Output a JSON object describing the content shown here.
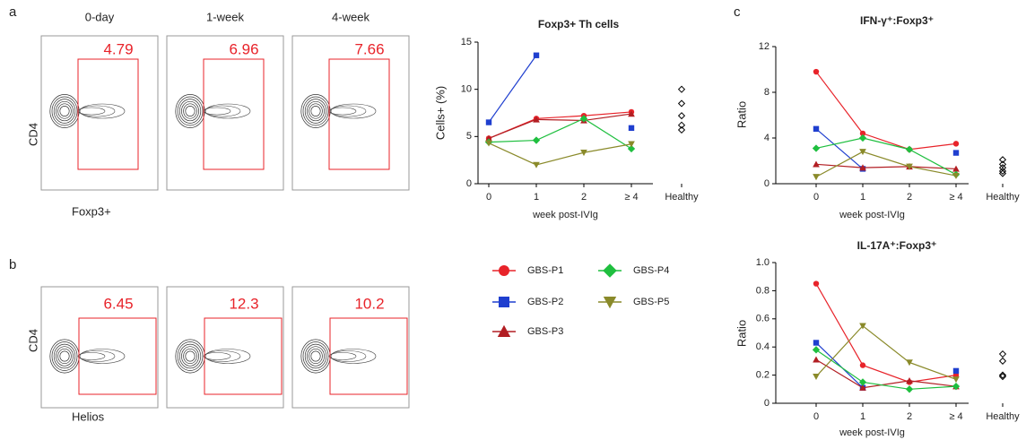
{
  "figure": {
    "panel_letters": [
      "a",
      "b",
      "c"
    ],
    "flow": {
      "columns": [
        "0-day",
        "1-week",
        "4-week"
      ],
      "rows": [
        {
          "y_label": "CD4",
          "x_label": "Foxp3+",
          "gates": [
            "4.79",
            "6.96",
            "7.66"
          ]
        },
        {
          "y_label": "CD4",
          "x_label": "Helios",
          "gates": [
            "6.45",
            "12.3",
            "10.2"
          ]
        }
      ]
    }
  },
  "chart_data": [
    {
      "type": "line",
      "title": "Foxp3+ Th cells",
      "y_label": "Cells+ (%)",
      "x_label": "week post-IVIg",
      "categories": [
        "0",
        "1",
        "2",
        "≥ 4",
        "Healthy"
      ],
      "ylim": [
        0,
        15
      ],
      "yticks": [
        0,
        5,
        10,
        15
      ],
      "series": [
        {
          "name": "GBS-P1",
          "color": "#e8232a",
          "marker": "circle",
          "values": [
            4.8,
            6.9,
            7.2,
            7.6,
            null
          ]
        },
        {
          "name": "GBS-P2",
          "color": "#1f3fcf",
          "marker": "square",
          "values": [
            6.5,
            13.6,
            null,
            5.9,
            null
          ]
        },
        {
          "name": "GBS-P3",
          "color": "#b21e23",
          "marker": "triangle",
          "values": [
            4.8,
            6.8,
            6.7,
            7.4,
            null
          ]
        },
        {
          "name": "GBS-P4",
          "color": "#1fbf3f",
          "marker": "diamond",
          "values": [
            4.4,
            4.6,
            6.9,
            3.7,
            null
          ]
        },
        {
          "name": "GBS-P5",
          "color": "#8a8a2a",
          "marker": "triangle-down",
          "values": [
            4.3,
            2.0,
            3.3,
            4.2,
            null
          ]
        }
      ],
      "healthy_values": [
        10.0,
        8.5,
        7.2,
        6.2,
        5.7
      ]
    },
    {
      "type": "line",
      "title": "IFN-γ⁺:Foxp3⁺",
      "y_label": "Ratio",
      "x_label": "week post-IVIg",
      "categories": [
        "0",
        "1",
        "2",
        "≥ 4",
        "Healthy"
      ],
      "ylim": [
        0,
        12
      ],
      "yticks": [
        0,
        4,
        8,
        12
      ],
      "series": [
        {
          "name": "GBS-P1",
          "color": "#e8232a",
          "marker": "circle",
          "values": [
            9.8,
            4.4,
            3.0,
            3.5,
            null
          ]
        },
        {
          "name": "GBS-P2",
          "color": "#1f3fcf",
          "marker": "square",
          "values": [
            4.8,
            1.3,
            null,
            2.7,
            null
          ]
        },
        {
          "name": "GBS-P3",
          "color": "#b21e23",
          "marker": "triangle",
          "values": [
            1.7,
            1.4,
            1.5,
            1.3,
            null
          ]
        },
        {
          "name": "GBS-P4",
          "color": "#1fbf3f",
          "marker": "diamond",
          "values": [
            3.1,
            4.0,
            3.0,
            0.8,
            null
          ]
        },
        {
          "name": "GBS-P5",
          "color": "#8a8a2a",
          "marker": "triangle-down",
          "values": [
            0.6,
            2.8,
            1.5,
            0.7,
            null
          ]
        }
      ],
      "healthy_values": [
        2.1,
        1.7,
        1.4,
        1.1,
        0.9
      ]
    },
    {
      "type": "line",
      "title": "IL-17A⁺:Foxp3⁺",
      "y_label": "Ratio",
      "x_label": "week post-IVIg",
      "categories": [
        "0",
        "1",
        "2",
        "≥ 4",
        "Healthy"
      ],
      "ylim": [
        0,
        1.0
      ],
      "yticks": [
        0,
        0.2,
        0.4,
        0.6,
        0.8,
        {
          "value": 1.0,
          "label": "1.0"
        }
      ],
      "series": [
        {
          "name": "GBS-P1",
          "color": "#e8232a",
          "marker": "circle",
          "values": [
            0.85,
            0.27,
            0.15,
            0.2,
            null
          ]
        },
        {
          "name": "GBS-P2",
          "color": "#1f3fcf",
          "marker": "square",
          "values": [
            0.43,
            0.11,
            null,
            0.23,
            null
          ]
        },
        {
          "name": "GBS-P3",
          "color": "#b21e23",
          "marker": "triangle",
          "values": [
            0.31,
            0.11,
            0.16,
            0.12,
            null
          ]
        },
        {
          "name": "GBS-P4",
          "color": "#1fbf3f",
          "marker": "diamond",
          "values": [
            0.38,
            0.15,
            0.1,
            0.12,
            null
          ]
        },
        {
          "name": "GBS-P5",
          "color": "#8a8a2a",
          "marker": "triangle-down",
          "values": [
            0.19,
            0.55,
            0.29,
            0.17,
            null
          ]
        }
      ],
      "healthy_values": [
        0.35,
        0.3,
        0.2,
        0.19
      ]
    }
  ]
}
